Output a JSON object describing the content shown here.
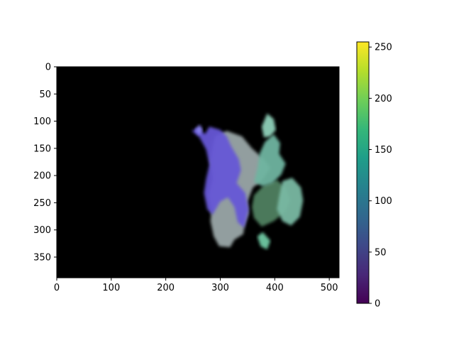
{
  "chart_data": {
    "type": "heatmap",
    "title": "",
    "xlabel": "",
    "ylabel": "",
    "x_range": [
      0,
      518
    ],
    "y_range": [
      388,
      0
    ],
    "x_ticks": [
      0,
      100,
      200,
      300,
      400,
      500
    ],
    "y_ticks": [
      0,
      50,
      100,
      150,
      200,
      250,
      300,
      350
    ],
    "grid": false,
    "background_color": "#000000",
    "image_content": "masked photo of a plant: purple flower cluster and green leaves on black background",
    "colorbar": {
      "colormap": "viridis",
      "range": [
        0,
        255
      ],
      "ticks": [
        0,
        50,
        100,
        150,
        200,
        250
      ],
      "stops": [
        "#440154",
        "#482878",
        "#3e4989",
        "#31688e",
        "#26828e",
        "#1f9e89",
        "#35b779",
        "#6ece58",
        "#b5de2b",
        "#fde725"
      ]
    },
    "regions": [
      {
        "name": "pale-blurred-region",
        "color": "#9aa6a8",
        "polygon": [
          [
            290,
            128
          ],
          [
            312,
            118
          ],
          [
            340,
            128
          ],
          [
            358,
            150
          ],
          [
            380,
            170
          ],
          [
            392,
            186
          ],
          [
            376,
            210
          ],
          [
            360,
            222
          ],
          [
            350,
            248
          ],
          [
            352,
            270
          ],
          [
            345,
            290
          ],
          [
            342,
            308
          ],
          [
            326,
            318
          ],
          [
            318,
            332
          ],
          [
            298,
            330
          ],
          [
            288,
            312
          ],
          [
            282,
            284
          ],
          [
            284,
            262
          ],
          [
            278,
            236
          ],
          [
            286,
            206
          ],
          [
            282,
            172
          ],
          [
            286,
            146
          ]
        ]
      },
      {
        "name": "purple-flower-cluster",
        "color": "#6656d6",
        "polygon": [
          [
            248,
            118
          ],
          [
            258,
            112
          ],
          [
            272,
            124
          ],
          [
            280,
            110
          ],
          [
            300,
            116
          ],
          [
            312,
            128
          ],
          [
            320,
            146
          ],
          [
            334,
            170
          ],
          [
            338,
            190
          ],
          [
            330,
            214
          ],
          [
            346,
            232
          ],
          [
            352,
            262
          ],
          [
            344,
            296
          ],
          [
            332,
            286
          ],
          [
            326,
            258
          ],
          [
            314,
            240
          ],
          [
            300,
            248
          ],
          [
            286,
            272
          ],
          [
            276,
            262
          ],
          [
            270,
            232
          ],
          [
            274,
            206
          ],
          [
            280,
            180
          ],
          [
            274,
            152
          ],
          [
            262,
            130
          ]
        ]
      },
      {
        "name": "flower-tip",
        "color": "#8a84f2",
        "polygon": [
          [
            254,
            116
          ],
          [
            262,
            106
          ],
          [
            268,
            116
          ],
          [
            262,
            126
          ]
        ]
      },
      {
        "name": "large-green-leaf",
        "color": "#4f8060",
        "polygon": [
          [
            362,
            236
          ],
          [
            382,
            216
          ],
          [
            404,
            208
          ],
          [
            420,
            222
          ],
          [
            428,
            246
          ],
          [
            418,
            268
          ],
          [
            398,
            284
          ],
          [
            376,
            294
          ],
          [
            362,
            278
          ],
          [
            358,
            258
          ]
        ]
      },
      {
        "name": "upper-teal-leaves",
        "color": "#6fb4a0",
        "polygon": [
          [
            372,
            160
          ],
          [
            382,
            138
          ],
          [
            398,
            124
          ],
          [
            410,
            140
          ],
          [
            408,
            160
          ],
          [
            420,
            178
          ],
          [
            412,
            198
          ],
          [
            396,
            214
          ],
          [
            378,
            220
          ],
          [
            362,
            212
          ],
          [
            368,
            188
          ]
        ]
      },
      {
        "name": "upper-leaf-tip",
        "color": "#8ed0b8",
        "polygon": [
          [
            376,
            110
          ],
          [
            386,
            86
          ],
          [
            398,
            96
          ],
          [
            402,
            116
          ],
          [
            392,
            128
          ],
          [
            380,
            130
          ]
        ]
      },
      {
        "name": "right-teal-leaves",
        "color": "#78b8a2",
        "polygon": [
          [
            414,
            210
          ],
          [
            432,
            204
          ],
          [
            448,
            222
          ],
          [
            452,
            246
          ],
          [
            446,
            276
          ],
          [
            430,
            292
          ],
          [
            414,
            284
          ],
          [
            404,
            262
          ],
          [
            408,
            238
          ]
        ]
      },
      {
        "name": "small-lower-leaf",
        "color": "#6fc8a2",
        "polygon": [
          [
            368,
            312
          ],
          [
            378,
            304
          ],
          [
            392,
            320
          ],
          [
            386,
            336
          ],
          [
            374,
            330
          ]
        ]
      }
    ]
  }
}
